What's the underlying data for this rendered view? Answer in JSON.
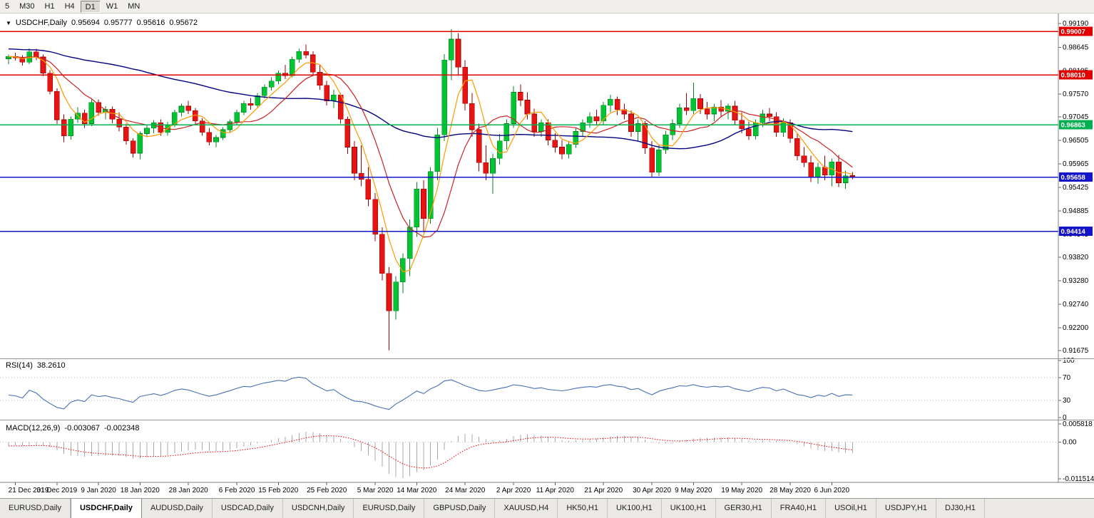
{
  "toolbar": {
    "timeframes": [
      {
        "label": "5",
        "active": false
      },
      {
        "label": "M30",
        "active": false
      },
      {
        "label": "H1",
        "active": false
      },
      {
        "label": "H4",
        "active": false
      },
      {
        "label": "D1",
        "active": true
      },
      {
        "label": "W1",
        "active": false
      },
      {
        "label": "MN",
        "active": false
      }
    ]
  },
  "chart": {
    "title": {
      "dropdown_icon": "▼",
      "symbol": "USDCHF,Daily",
      "open": "0.95694",
      "high": "0.95777",
      "low": "0.95616",
      "close": "0.95672"
    }
  },
  "indicators": {
    "rsi": {
      "name": "RSI(14)",
      "value": "38.2610",
      "period": 14,
      "levels": [
        "100",
        "70",
        "30",
        "0"
      ],
      "dotted_levels": [
        70,
        30
      ],
      "line_color": "#4671b4"
    },
    "macd": {
      "name": "MACD(12,26,9)",
      "main_value": "-0.003067",
      "signal_value": "-0.002348",
      "fast": 12,
      "slow": 26,
      "signal": 9,
      "axis_labels": {
        "top": "0.005818",
        "zero": "0.00",
        "bottom": "-0.011514"
      },
      "histogram_color": "#a8a8a8",
      "signal_color": "#ee0000",
      "scale_max": 0.005818,
      "scale_min": -0.011514
    }
  },
  "chart_data": {
    "type": "candlestick",
    "symbol": "USDCHF",
    "timeframe": "Daily",
    "up_color": "#00c432",
    "up_edge": "#008520",
    "down_color": "#e81414",
    "down_edge": "#9e0000",
    "price_axis": {
      "ticks": [
        "0.99190",
        "0.98645",
        "0.98105",
        "0.97570",
        "0.97045",
        "0.96505",
        "0.95965",
        "0.95425",
        "0.94885",
        "0.94345",
        "0.93820",
        "0.93280",
        "0.92740",
        "0.92200",
        "0.91675"
      ]
    },
    "h_lines": [
      {
        "price": 0.99007,
        "label": "0.99007",
        "color": "#e00000"
      },
      {
        "price": 0.9801,
        "label": "0.98010",
        "color": "#e00000"
      },
      {
        "price": 0.96863,
        "label": "0.96863",
        "color": "#00b050"
      },
      {
        "price": 0.95658,
        "label": "0.95658",
        "color": "#1515c8"
      },
      {
        "price": 0.94414,
        "label": "0.94414",
        "color": "#1515c8"
      }
    ],
    "moving_averages": [
      {
        "period": 50,
        "color": "#000080",
        "width": 1.4
      },
      {
        "period": 10,
        "color": "#cc2222",
        "width": 1.2
      },
      {
        "period": 5,
        "color": "#ff9900",
        "width": 1.2
      }
    ],
    "date_labels": [
      {
        "index": 1,
        "label": "21 Dec 2019"
      },
      {
        "index": 7,
        "label": "31 Dec 2019"
      },
      {
        "index": 13,
        "label": "9 Jan 2020"
      },
      {
        "index": 19,
        "label": "18 Jan 2020"
      },
      {
        "index": 26,
        "label": "28 Jan 2020"
      },
      {
        "index": 33,
        "label": "6 Feb 2020"
      },
      {
        "index": 39,
        "label": "15 Feb 2020"
      },
      {
        "index": 46,
        "label": "25 Feb 2020"
      },
      {
        "index": 53,
        "label": "5 Mar 2020"
      },
      {
        "index": 59,
        "label": "14 Mar 2020"
      },
      {
        "index": 66,
        "label": "24 Mar 2020"
      },
      {
        "index": 73,
        "label": "2 Apr 2020"
      },
      {
        "index": 79,
        "label": "11 Apr 2020"
      },
      {
        "index": 86,
        "label": "21 Apr 2020"
      },
      {
        "index": 93,
        "label": "30 Apr 2020"
      },
      {
        "index": 99,
        "label": "9 May 2020"
      },
      {
        "index": 106,
        "label": "19 May 2020"
      },
      {
        "index": 113,
        "label": "28 May 2020"
      },
      {
        "index": 119,
        "label": "6 Jun 2020"
      }
    ],
    "warmup_closes": [
      0.9906,
      0.9898,
      0.989,
      0.9884,
      0.9892,
      0.9886,
      0.9878,
      0.987,
      0.9876,
      0.9868,
      0.986,
      0.9866,
      0.9858,
      0.985,
      0.9856,
      0.9862,
      0.9854,
      0.9846,
      0.9852,
      0.9844,
      0.985,
      0.9842,
      0.9848,
      0.984,
      0.9846,
      0.9838,
      0.9844,
      0.985,
      0.9842,
      0.9836
    ],
    "candles": [
      [
        0.9838,
        0.9848,
        0.9826,
        0.9843
      ],
      [
        0.9843,
        0.9852,
        0.9834,
        0.984
      ],
      [
        0.984,
        0.9846,
        0.9822,
        0.983
      ],
      [
        0.983,
        0.9862,
        0.9826,
        0.9854
      ],
      [
        0.9854,
        0.9861,
        0.9835,
        0.9842
      ],
      [
        0.9842,
        0.9848,
        0.9798,
        0.9805
      ],
      [
        0.9805,
        0.9812,
        0.9756,
        0.9763
      ],
      [
        0.9763,
        0.977,
        0.9688,
        0.9698
      ],
      [
        0.9698,
        0.971,
        0.9646,
        0.9661
      ],
      [
        0.9661,
        0.9705,
        0.9652,
        0.9699
      ],
      [
        0.9699,
        0.9727,
        0.9691,
        0.9713
      ],
      [
        0.9713,
        0.9721,
        0.9679,
        0.9689
      ],
      [
        0.9689,
        0.9745,
        0.9683,
        0.9738
      ],
      [
        0.9738,
        0.9745,
        0.9707,
        0.9715
      ],
      [
        0.9715,
        0.9729,
        0.9699,
        0.9722
      ],
      [
        0.9722,
        0.9728,
        0.969,
        0.9699
      ],
      [
        0.9699,
        0.9715,
        0.9671,
        0.9681
      ],
      [
        0.9681,
        0.9689,
        0.9641,
        0.9649
      ],
      [
        0.9649,
        0.9655,
        0.9611,
        0.9621
      ],
      [
        0.9621,
        0.9671,
        0.9607,
        0.9666
      ],
      [
        0.9666,
        0.9687,
        0.9658,
        0.9679
      ],
      [
        0.9679,
        0.9697,
        0.9667,
        0.9691
      ],
      [
        0.9691,
        0.9699,
        0.9661,
        0.9669
      ],
      [
        0.9669,
        0.9693,
        0.9661,
        0.9687
      ],
      [
        0.9687,
        0.9721,
        0.9681,
        0.9715
      ],
      [
        0.9715,
        0.9735,
        0.9705,
        0.9729
      ],
      [
        0.9729,
        0.9741,
        0.9711,
        0.9719
      ],
      [
        0.9719,
        0.9725,
        0.9687,
        0.9695
      ],
      [
        0.9695,
        0.9701,
        0.9661,
        0.9669
      ],
      [
        0.9669,
        0.9679,
        0.9639,
        0.9647
      ],
      [
        0.9647,
        0.9663,
        0.9635,
        0.9657
      ],
      [
        0.9657,
        0.9681,
        0.9651,
        0.9675
      ],
      [
        0.9675,
        0.9699,
        0.9669,
        0.9693
      ],
      [
        0.9693,
        0.9721,
        0.9687,
        0.9715
      ],
      [
        0.9715,
        0.9741,
        0.9709,
        0.9735
      ],
      [
        0.9735,
        0.9748,
        0.9721,
        0.9731
      ],
      [
        0.9731,
        0.9759,
        0.9727,
        0.9753
      ],
      [
        0.9753,
        0.9779,
        0.9747,
        0.9773
      ],
      [
        0.9773,
        0.9795,
        0.9765,
        0.9787
      ],
      [
        0.9787,
        0.9811,
        0.9779,
        0.9805
      ],
      [
        0.9805,
        0.9824,
        0.9791,
        0.9799
      ],
      [
        0.9799,
        0.9843,
        0.9795,
        0.9837
      ],
      [
        0.9837,
        0.9861,
        0.9829,
        0.9855
      ],
      [
        0.9855,
        0.9871,
        0.9839,
        0.9847
      ],
      [
        0.9847,
        0.9855,
        0.9799,
        0.9807
      ],
      [
        0.9807,
        0.9823,
        0.9767,
        0.9777
      ],
      [
        0.9777,
        0.9787,
        0.9731,
        0.9741
      ],
      [
        0.9741,
        0.9767,
        0.9725,
        0.9755
      ],
      [
        0.9755,
        0.9759,
        0.9689,
        0.9699
      ],
      [
        0.9699,
        0.9705,
        0.9619,
        0.9635
      ],
      [
        0.9635,
        0.9649,
        0.9559,
        0.9575
      ],
      [
        0.9575,
        0.9639,
        0.9545,
        0.9561
      ],
      [
        0.9561,
        0.9589,
        0.9499,
        0.9515
      ],
      [
        0.9515,
        0.9529,
        0.9419,
        0.9435
      ],
      [
        0.9435,
        0.9451,
        0.9329,
        0.9345
      ],
      [
        0.9345,
        0.9359,
        0.9168,
        0.9259
      ],
      [
        0.9259,
        0.9339,
        0.9239,
        0.9325
      ],
      [
        0.9325,
        0.9391,
        0.9299,
        0.9379
      ],
      [
        0.9379,
        0.9469,
        0.9339,
        0.9451
      ],
      [
        0.9451,
        0.9555,
        0.9429,
        0.9539
      ],
      [
        0.9539,
        0.9559,
        0.9439,
        0.9471
      ],
      [
        0.9471,
        0.9589,
        0.9459,
        0.9579
      ],
      [
        0.9579,
        0.9679,
        0.9559,
        0.9663
      ],
      [
        0.9663,
        0.9849,
        0.9649,
        0.9835
      ],
      [
        0.9835,
        0.99055,
        0.9789,
        0.9883
      ],
      [
        0.9883,
        0.9897,
        0.9799,
        0.9819
      ],
      [
        0.9819,
        0.9835,
        0.9719,
        0.9735
      ],
      [
        0.9735,
        0.9759,
        0.9659,
        0.9675
      ],
      [
        0.9675,
        0.9689,
        0.9579,
        0.9599
      ],
      [
        0.9599,
        0.9639,
        0.9559,
        0.9575
      ],
      [
        0.9575,
        0.9619,
        0.9528,
        0.9609
      ],
      [
        0.9609,
        0.9665,
        0.9595,
        0.9649
      ],
      [
        0.9649,
        0.9699,
        0.9629,
        0.9689
      ],
      [
        0.9689,
        0.9775,
        0.9679,
        0.9761
      ],
      [
        0.9761,
        0.9779,
        0.9729,
        0.9743
      ],
      [
        0.9743,
        0.9761,
        0.9699,
        0.9711
      ],
      [
        0.9711,
        0.9723,
        0.9659,
        0.9671
      ],
      [
        0.9671,
        0.9699,
        0.9659,
        0.9691
      ],
      [
        0.9691,
        0.9699,
        0.9639,
        0.9651
      ],
      [
        0.9651,
        0.9667,
        0.9623,
        0.9635
      ],
      [
        0.9635,
        0.9651,
        0.9607,
        0.9619
      ],
      [
        0.9619,
        0.9649,
        0.9609,
        0.9641
      ],
      [
        0.9641,
        0.9679,
        0.9633,
        0.9671
      ],
      [
        0.9671,
        0.9699,
        0.9659,
        0.9691
      ],
      [
        0.9691,
        0.9715,
        0.9679,
        0.9705
      ],
      [
        0.9705,
        0.9721,
        0.9685,
        0.9695
      ],
      [
        0.9695,
        0.9739,
        0.9687,
        0.9731
      ],
      [
        0.9731,
        0.9755,
        0.9715,
        0.9745
      ],
      [
        0.9745,
        0.9751,
        0.9709,
        0.9721
      ],
      [
        0.9721,
        0.9735,
        0.9699,
        0.9711
      ],
      [
        0.9711,
        0.9719,
        0.9659,
        0.9671
      ],
      [
        0.9671,
        0.9699,
        0.9649,
        0.9689
      ],
      [
        0.9689,
        0.9695,
        0.9619,
        0.9633
      ],
      [
        0.9633,
        0.9649,
        0.9565,
        0.9577
      ],
      [
        0.9577,
        0.9639,
        0.9569,
        0.9629
      ],
      [
        0.9629,
        0.9673,
        0.9619,
        0.9663
      ],
      [
        0.9663,
        0.9699,
        0.9651,
        0.9689
      ],
      [
        0.9689,
        0.9735,
        0.9679,
        0.9725
      ],
      [
        0.9725,
        0.9759,
        0.9709,
        0.9719
      ],
      [
        0.9719,
        0.9783,
        0.9711,
        0.9747
      ],
      [
        0.9747,
        0.9757,
        0.9711,
        0.9723
      ],
      [
        0.9723,
        0.9739,
        0.9699,
        0.9711
      ],
      [
        0.9711,
        0.9735,
        0.9695,
        0.9727
      ],
      [
        0.9727,
        0.9743,
        0.9705,
        0.9717
      ],
      [
        0.9717,
        0.9735,
        0.9699,
        0.9729
      ],
      [
        0.9729,
        0.9741,
        0.9687,
        0.9697
      ],
      [
        0.9697,
        0.9715,
        0.9667,
        0.9677
      ],
      [
        0.9677,
        0.9693,
        0.9651,
        0.9661
      ],
      [
        0.9661,
        0.9699,
        0.9653,
        0.9691
      ],
      [
        0.9691,
        0.9721,
        0.9681,
        0.9711
      ],
      [
        0.9711,
        0.9725,
        0.9695,
        0.9705
      ],
      [
        0.9705,
        0.9715,
        0.9659,
        0.9669
      ],
      [
        0.9669,
        0.9701,
        0.9659,
        0.9691
      ],
      [
        0.9691,
        0.9699,
        0.9645,
        0.9655
      ],
      [
        0.9655,
        0.9667,
        0.9605,
        0.9615
      ],
      [
        0.9615,
        0.9635,
        0.9589,
        0.9599
      ],
      [
        0.9599,
        0.9615,
        0.9555,
        0.9565
      ],
      [
        0.9565,
        0.9599,
        0.9551,
        0.9589
      ],
      [
        0.9589,
        0.9615,
        0.9559,
        0.9571
      ],
      [
        0.9571,
        0.9609,
        0.9545,
        0.9601
      ],
      [
        0.9601,
        0.9617,
        0.9543,
        0.9553
      ],
      [
        0.9553,
        0.9581,
        0.9539,
        0.9569
      ],
      [
        0.95694,
        0.95777,
        0.95616,
        0.95672
      ]
    ]
  },
  "tabs": [
    {
      "label": "EURUSD,Daily",
      "active": false
    },
    {
      "label": "USDCHF,Daily",
      "active": true
    },
    {
      "label": "AUDUSD,Daily",
      "active": false
    },
    {
      "label": "USDCAD,Daily",
      "active": false
    },
    {
      "label": "USDCNH,Daily",
      "active": false
    },
    {
      "label": "EURUSD,Daily",
      "active": false
    },
    {
      "label": "GBPUSD,Daily",
      "active": false
    },
    {
      "label": "XAUUSD,H4",
      "active": false
    },
    {
      "label": "HK50,H1",
      "active": false
    },
    {
      "label": "UK100,H1",
      "active": false
    },
    {
      "label": "UK100,H1",
      "active": false
    },
    {
      "label": "GER30,H1",
      "active": false
    },
    {
      "label": "FRA40,H1",
      "active": false
    },
    {
      "label": "USOil,H1",
      "active": false
    },
    {
      "label": "USDJPY,H1",
      "active": false
    },
    {
      "label": "DJ30,H1",
      "active": false
    }
  ]
}
